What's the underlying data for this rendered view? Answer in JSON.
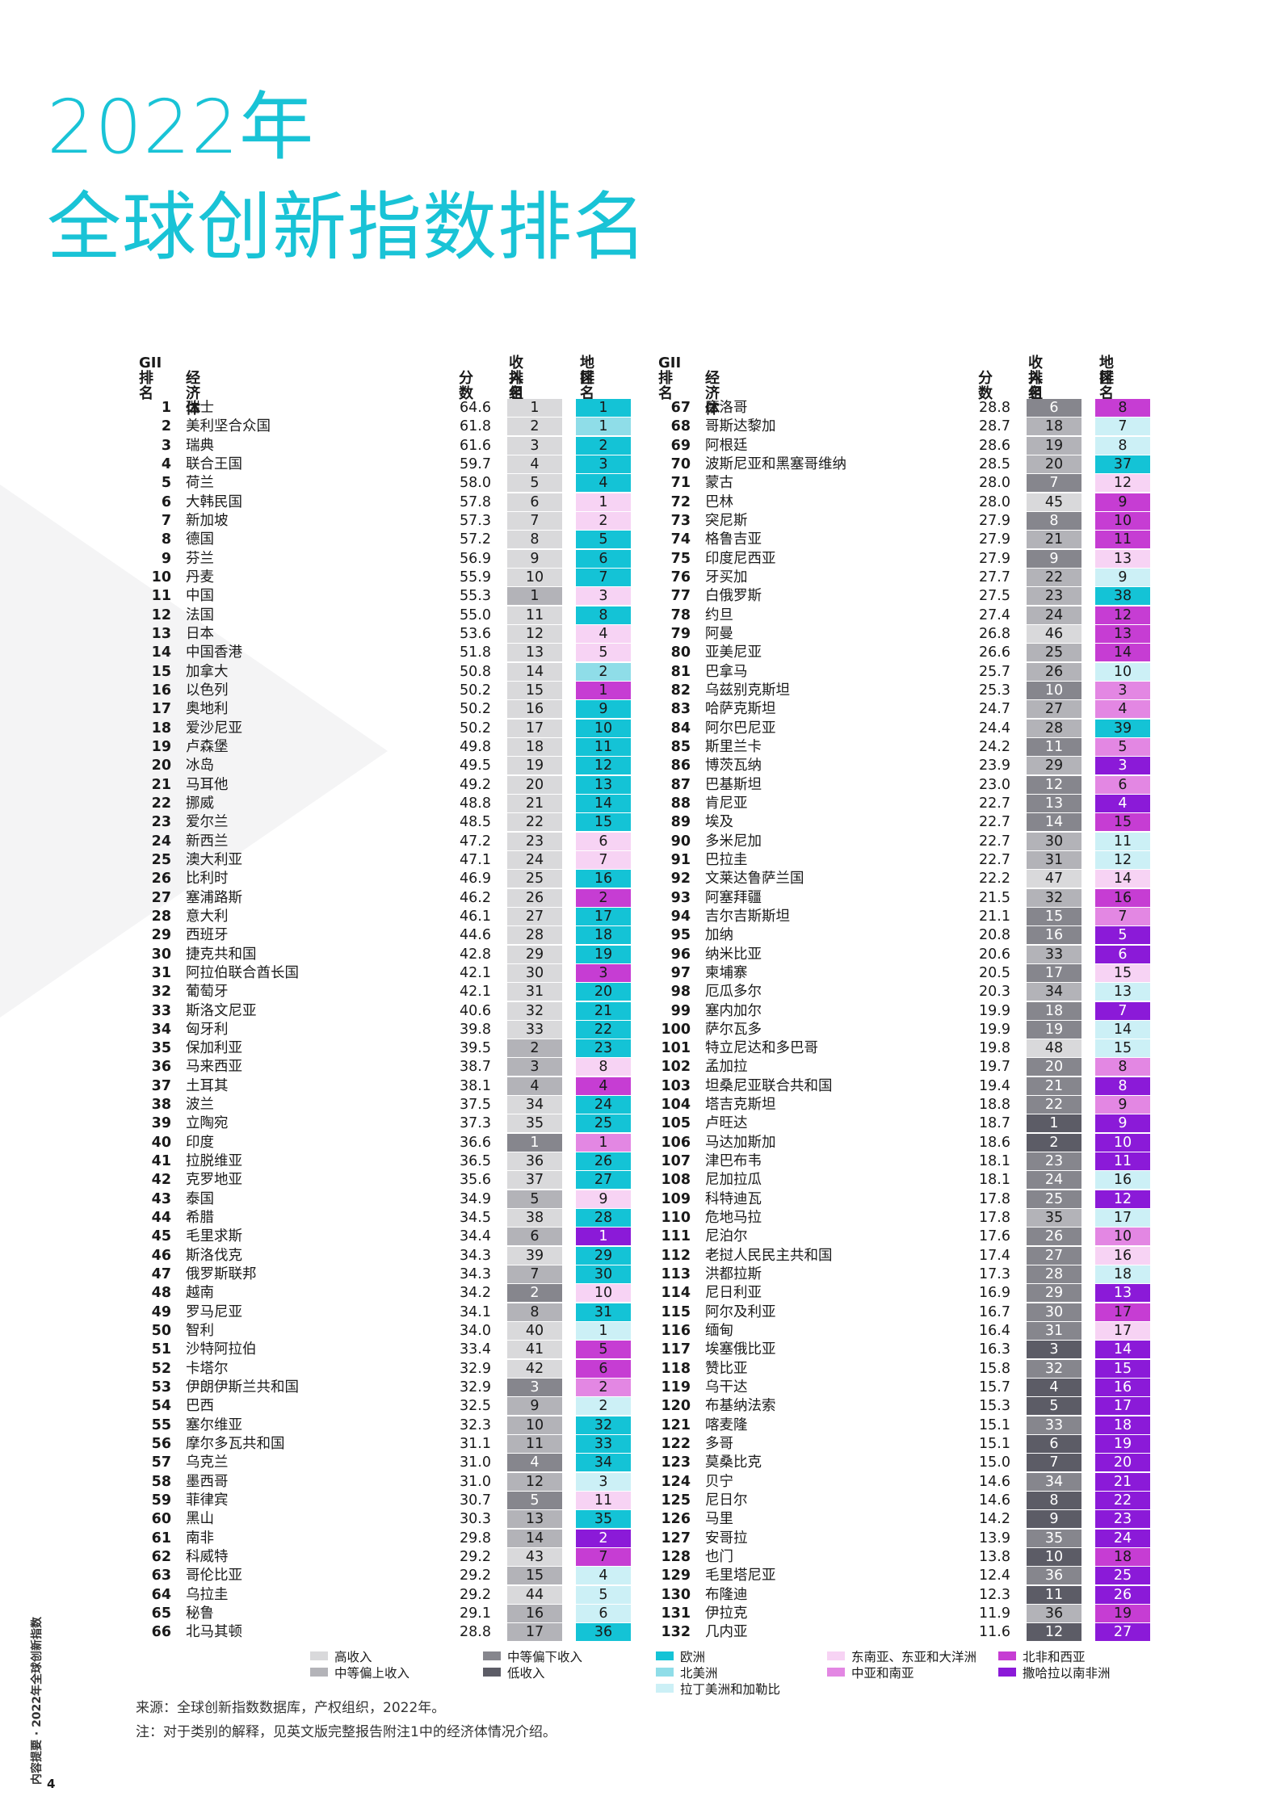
{
  "title_line1": "2022年",
  "title_line2": "全球创新指数排名",
  "headers": {
    "gii": "GII",
    "gii2": "排名",
    "economy": "经济体",
    "score": "分数",
    "income": "收入组",
    "income2": "排名",
    "region": "地区",
    "region2": "排名"
  },
  "colors": {
    "high": "#d9d9db",
    "upper_mid": "#b3b3b8",
    "lower_mid": "#86868d",
    "low": "#5c5c66",
    "europe": "#14c3d6",
    "north_america": "#8fdde8",
    "latin": "#ccf0f6",
    "seao": "#f7d3f4",
    "csa": "#e387e3",
    "nawa": "#c63dd3",
    "ssa": "#8b1ad8"
  },
  "legend": [
    {
      "label": "高收入",
      "color": "#d9d9db"
    },
    {
      "label": "中等偏上收入",
      "color": "#b3b3b8"
    },
    {
      "label": "中等偏下收入",
      "color": "#86868d"
    },
    {
      "label": "低收入",
      "color": "#5c5c66"
    },
    {
      "label": "欧洲",
      "color": "#14c3d6"
    },
    {
      "label": "北美洲",
      "color": "#8fdde8"
    },
    {
      "label": "拉丁美洲和加勒比",
      "color": "#ccf0f6"
    },
    {
      "label": "东南亚、东亚和大洋洲",
      "color": "#f7d3f4"
    },
    {
      "label": "中亚和南亚",
      "color": "#e387e3"
    },
    {
      "label": "北非和西亚",
      "color": "#c63dd3"
    },
    {
      "label": "撒哈拉以南非洲",
      "color": "#8b1ad8"
    }
  ],
  "source": "来源：全球创新指数数据库，产权组织，2022年。",
  "note": "注：对于类别的解释，见英文版完整报告附注1中的经济体情况介绍。",
  "side_text": "内容提要 · 2022年全球创新指数",
  "page_number": "4",
  "left_rows": [
    [
      "1",
      "瑞士",
      "64.6",
      "1",
      "H",
      "1",
      "EU"
    ],
    [
      "2",
      "美利坚合众国",
      "61.8",
      "2",
      "H",
      "1",
      "NA"
    ],
    [
      "3",
      "瑞典",
      "61.6",
      "3",
      "H",
      "2",
      "EU"
    ],
    [
      "4",
      "联合王国",
      "59.7",
      "4",
      "H",
      "3",
      "EU"
    ],
    [
      "5",
      "荷兰",
      "58.0",
      "5",
      "H",
      "4",
      "EU"
    ],
    [
      "6",
      "大韩民国",
      "57.8",
      "6",
      "H",
      "1",
      "SEAO"
    ],
    [
      "7",
      "新加坡",
      "57.3",
      "7",
      "H",
      "2",
      "SEAO"
    ],
    [
      "8",
      "德国",
      "57.2",
      "8",
      "H",
      "5",
      "EU"
    ],
    [
      "9",
      "芬兰",
      "56.9",
      "9",
      "H",
      "6",
      "EU"
    ],
    [
      "10",
      "丹麦",
      "55.9",
      "10",
      "H",
      "7",
      "EU"
    ],
    [
      "11",
      "中国",
      "55.3",
      "1",
      "UM",
      "3",
      "SEAO"
    ],
    [
      "12",
      "法国",
      "55.0",
      "11",
      "H",
      "8",
      "EU"
    ],
    [
      "13",
      "日本",
      "53.6",
      "12",
      "H",
      "4",
      "SEAO"
    ],
    [
      "14",
      "中国香港",
      "51.8",
      "13",
      "H",
      "5",
      "SEAO"
    ],
    [
      "15",
      "加拿大",
      "50.8",
      "14",
      "H",
      "2",
      "NA"
    ],
    [
      "16",
      "以色列",
      "50.2",
      "15",
      "H",
      "1",
      "NAWA"
    ],
    [
      "17",
      "奥地利",
      "50.2",
      "16",
      "H",
      "9",
      "EU"
    ],
    [
      "18",
      "爱沙尼亚",
      "50.2",
      "17",
      "H",
      "10",
      "EU"
    ],
    [
      "19",
      "卢森堡",
      "49.8",
      "18",
      "H",
      "11",
      "EU"
    ],
    [
      "20",
      "冰岛",
      "49.5",
      "19",
      "H",
      "12",
      "EU"
    ],
    [
      "21",
      "马耳他",
      "49.2",
      "20",
      "H",
      "13",
      "EU"
    ],
    [
      "22",
      "挪威",
      "48.8",
      "21",
      "H",
      "14",
      "EU"
    ],
    [
      "23",
      "爱尔兰",
      "48.5",
      "22",
      "H",
      "15",
      "EU"
    ],
    [
      "24",
      "新西兰",
      "47.2",
      "23",
      "H",
      "6",
      "SEAO"
    ],
    [
      "25",
      "澳大利亚",
      "47.1",
      "24",
      "H",
      "7",
      "SEAO"
    ],
    [
      "26",
      "比利时",
      "46.9",
      "25",
      "H",
      "16",
      "EU"
    ],
    [
      "27",
      "塞浦路斯",
      "46.2",
      "26",
      "H",
      "2",
      "NAWA"
    ],
    [
      "28",
      "意大利",
      "46.1",
      "27",
      "H",
      "17",
      "EU"
    ],
    [
      "29",
      "西班牙",
      "44.6",
      "28",
      "H",
      "18",
      "EU"
    ],
    [
      "30",
      "捷克共和国",
      "42.8",
      "29",
      "H",
      "19",
      "EU"
    ],
    [
      "31",
      "阿拉伯联合酋长国",
      "42.1",
      "30",
      "H",
      "3",
      "NAWA"
    ],
    [
      "32",
      "葡萄牙",
      "42.1",
      "31",
      "H",
      "20",
      "EU"
    ],
    [
      "33",
      "斯洛文尼亚",
      "40.6",
      "32",
      "H",
      "21",
      "EU"
    ],
    [
      "34",
      "匈牙利",
      "39.8",
      "33",
      "H",
      "22",
      "EU"
    ],
    [
      "35",
      "保加利亚",
      "39.5",
      "2",
      "UM",
      "23",
      "EU"
    ],
    [
      "36",
      "马来西亚",
      "38.7",
      "3",
      "UM",
      "8",
      "SEAO"
    ],
    [
      "37",
      "土耳其",
      "38.1",
      "4",
      "UM",
      "4",
      "NAWA"
    ],
    [
      "38",
      "波兰",
      "37.5",
      "34",
      "H",
      "24",
      "EU"
    ],
    [
      "39",
      "立陶宛",
      "37.3",
      "35",
      "H",
      "25",
      "EU"
    ],
    [
      "40",
      "印度",
      "36.6",
      "1",
      "LM",
      "1",
      "CSA"
    ],
    [
      "41",
      "拉脱维亚",
      "36.5",
      "36",
      "H",
      "26",
      "EU"
    ],
    [
      "42",
      "克罗地亚",
      "35.6",
      "37",
      "H",
      "27",
      "EU"
    ],
    [
      "43",
      "泰国",
      "34.9",
      "5",
      "UM",
      "9",
      "SEAO"
    ],
    [
      "44",
      "希腊",
      "34.5",
      "38",
      "H",
      "28",
      "EU"
    ],
    [
      "45",
      "毛里求斯",
      "34.4",
      "6",
      "UM",
      "1",
      "SSA"
    ],
    [
      "46",
      "斯洛伐克",
      "34.3",
      "39",
      "H",
      "29",
      "EU"
    ],
    [
      "47",
      "俄罗斯联邦",
      "34.3",
      "7",
      "UM",
      "30",
      "EU"
    ],
    [
      "48",
      "越南",
      "34.2",
      "2",
      "LM",
      "10",
      "SEAO"
    ],
    [
      "49",
      "罗马尼亚",
      "34.1",
      "8",
      "UM",
      "31",
      "EU"
    ],
    [
      "50",
      "智利",
      "34.0",
      "40",
      "H",
      "1",
      "LA"
    ],
    [
      "51",
      "沙特阿拉伯",
      "33.4",
      "41",
      "H",
      "5",
      "NAWA"
    ],
    [
      "52",
      "卡塔尔",
      "32.9",
      "42",
      "H",
      "6",
      "NAWA"
    ],
    [
      "53",
      "伊朗伊斯兰共和国",
      "32.9",
      "3",
      "LM",
      "2",
      "CSA"
    ],
    [
      "54",
      "巴西",
      "32.5",
      "9",
      "UM",
      "2",
      "LA"
    ],
    [
      "55",
      "塞尔维亚",
      "32.3",
      "10",
      "UM",
      "32",
      "EU"
    ],
    [
      "56",
      "摩尔多瓦共和国",
      "31.1",
      "11",
      "UM",
      "33",
      "EU"
    ],
    [
      "57",
      "乌克兰",
      "31.0",
      "4",
      "LM",
      "34",
      "EU"
    ],
    [
      "58",
      "墨西哥",
      "31.0",
      "12",
      "UM",
      "3",
      "LA"
    ],
    [
      "59",
      "菲律宾",
      "30.7",
      "5",
      "LM",
      "11",
      "SEAO"
    ],
    [
      "60",
      "黑山",
      "30.3",
      "13",
      "UM",
      "35",
      "EU"
    ],
    [
      "61",
      "南非",
      "29.8",
      "14",
      "UM",
      "2",
      "SSA"
    ],
    [
      "62",
      "科威特",
      "29.2",
      "43",
      "H",
      "7",
      "NAWA"
    ],
    [
      "63",
      "哥伦比亚",
      "29.2",
      "15",
      "UM",
      "4",
      "LA"
    ],
    [
      "64",
      "乌拉圭",
      "29.2",
      "44",
      "H",
      "5",
      "LA"
    ],
    [
      "65",
      "秘鲁",
      "29.1",
      "16",
      "UM",
      "6",
      "LA"
    ],
    [
      "66",
      "北马其顿",
      "28.8",
      "17",
      "UM",
      "36",
      "EU"
    ]
  ],
  "right_rows": [
    [
      "67",
      "摩洛哥",
      "28.8",
      "6",
      "LM",
      "8",
      "NAWA"
    ],
    [
      "68",
      "哥斯达黎加",
      "28.7",
      "18",
      "UM",
      "7",
      "LA"
    ],
    [
      "69",
      "阿根廷",
      "28.6",
      "19",
      "UM",
      "8",
      "LA"
    ],
    [
      "70",
      "波斯尼亚和黑塞哥维纳",
      "28.5",
      "20",
      "UM",
      "37",
      "EU"
    ],
    [
      "71",
      "蒙古",
      "28.0",
      "7",
      "LM",
      "12",
      "SEAO"
    ],
    [
      "72",
      "巴林",
      "28.0",
      "45",
      "H",
      "9",
      "NAWA"
    ],
    [
      "73",
      "突尼斯",
      "27.9",
      "8",
      "LM",
      "10",
      "NAWA"
    ],
    [
      "74",
      "格鲁吉亚",
      "27.9",
      "21",
      "UM",
      "11",
      "NAWA"
    ],
    [
      "75",
      "印度尼西亚",
      "27.9",
      "9",
      "LM",
      "13",
      "SEAO"
    ],
    [
      "76",
      "牙买加",
      "27.7",
      "22",
      "UM",
      "9",
      "LA"
    ],
    [
      "77",
      "白俄罗斯",
      "27.5",
      "23",
      "UM",
      "38",
      "EU"
    ],
    [
      "78",
      "约旦",
      "27.4",
      "24",
      "UM",
      "12",
      "NAWA"
    ],
    [
      "79",
      "阿曼",
      "26.8",
      "46",
      "H",
      "13",
      "NAWA"
    ],
    [
      "80",
      "亚美尼亚",
      "26.6",
      "25",
      "UM",
      "14",
      "NAWA"
    ],
    [
      "81",
      "巴拿马",
      "25.7",
      "26",
      "UM",
      "10",
      "LA"
    ],
    [
      "82",
      "乌兹别克斯坦",
      "25.3",
      "10",
      "LM",
      "3",
      "CSA"
    ],
    [
      "83",
      "哈萨克斯坦",
      "24.7",
      "27",
      "UM",
      "4",
      "CSA"
    ],
    [
      "84",
      "阿尔巴尼亚",
      "24.4",
      "28",
      "UM",
      "39",
      "EU"
    ],
    [
      "85",
      "斯里兰卡",
      "24.2",
      "11",
      "LM",
      "5",
      "CSA"
    ],
    [
      "86",
      "博茨瓦纳",
      "23.9",
      "29",
      "UM",
      "3",
      "SSA"
    ],
    [
      "87",
      "巴基斯坦",
      "23.0",
      "12",
      "LM",
      "6",
      "CSA"
    ],
    [
      "88",
      "肯尼亚",
      "22.7",
      "13",
      "LM",
      "4",
      "SSA"
    ],
    [
      "89",
      "埃及",
      "22.7",
      "14",
      "LM",
      "15",
      "NAWA"
    ],
    [
      "90",
      "多米尼加",
      "22.7",
      "30",
      "UM",
      "11",
      "LA"
    ],
    [
      "91",
      "巴拉圭",
      "22.7",
      "31",
      "UM",
      "12",
      "LA"
    ],
    [
      "92",
      "文莱达鲁萨兰国",
      "22.2",
      "47",
      "H",
      "14",
      "SEAO"
    ],
    [
      "93",
      "阿塞拜疆",
      "21.5",
      "32",
      "UM",
      "16",
      "NAWA"
    ],
    [
      "94",
      "吉尔吉斯斯坦",
      "21.1",
      "15",
      "LM",
      "7",
      "CSA"
    ],
    [
      "95",
      "加纳",
      "20.8",
      "16",
      "LM",
      "5",
      "SSA"
    ],
    [
      "96",
      "纳米比亚",
      "20.6",
      "33",
      "UM",
      "6",
      "SSA"
    ],
    [
      "97",
      "柬埔寨",
      "20.5",
      "17",
      "LM",
      "15",
      "SEAO"
    ],
    [
      "98",
      "厄瓜多尔",
      "20.3",
      "34",
      "UM",
      "13",
      "LA"
    ],
    [
      "99",
      "塞内加尔",
      "19.9",
      "18",
      "LM",
      "7",
      "SSA"
    ],
    [
      "100",
      "萨尔瓦多",
      "19.9",
      "19",
      "LM",
      "14",
      "LA"
    ],
    [
      "101",
      "特立尼达和多巴哥",
      "19.8",
      "48",
      "H",
      "15",
      "LA"
    ],
    [
      "102",
      "孟加拉",
      "19.7",
      "20",
      "LM",
      "8",
      "CSA"
    ],
    [
      "103",
      "坦桑尼亚联合共和国",
      "19.4",
      "21",
      "LM",
      "8",
      "SSA"
    ],
    [
      "104",
      "塔吉克斯坦",
      "18.8",
      "22",
      "LM",
      "9",
      "CSA"
    ],
    [
      "105",
      "卢旺达",
      "18.7",
      "1",
      "L",
      "9",
      "SSA"
    ],
    [
      "106",
      "马达加斯加",
      "18.6",
      "2",
      "L",
      "10",
      "SSA"
    ],
    [
      "107",
      "津巴布韦",
      "18.1",
      "23",
      "LM",
      "11",
      "SSA"
    ],
    [
      "108",
      "尼加拉瓜",
      "18.1",
      "24",
      "LM",
      "16",
      "LA"
    ],
    [
      "109",
      "科特迪瓦",
      "17.8",
      "25",
      "LM",
      "12",
      "SSA"
    ],
    [
      "110",
      "危地马拉",
      "17.8",
      "35",
      "UM",
      "17",
      "LA"
    ],
    [
      "111",
      "尼泊尔",
      "17.6",
      "26",
      "LM",
      "10",
      "CSA"
    ],
    [
      "112",
      "老挝人民民主共和国",
      "17.4",
      "27",
      "LM",
      "16",
      "SEAO"
    ],
    [
      "113",
      "洪都拉斯",
      "17.3",
      "28",
      "LM",
      "18",
      "LA"
    ],
    [
      "114",
      "尼日利亚",
      "16.9",
      "29",
      "LM",
      "13",
      "SSA"
    ],
    [
      "115",
      "阿尔及利亚",
      "16.7",
      "30",
      "LM",
      "17",
      "NAWA"
    ],
    [
      "116",
      "缅甸",
      "16.4",
      "31",
      "LM",
      "17",
      "SEAO"
    ],
    [
      "117",
      "埃塞俄比亚",
      "16.3",
      "3",
      "L",
      "14",
      "SSA"
    ],
    [
      "118",
      "赞比亚",
      "15.8",
      "32",
      "LM",
      "15",
      "SSA"
    ],
    [
      "119",
      "乌干达",
      "15.7",
      "4",
      "L",
      "16",
      "SSA"
    ],
    [
      "120",
      "布基纳法索",
      "15.3",
      "5",
      "L",
      "17",
      "SSA"
    ],
    [
      "121",
      "喀麦隆",
      "15.1",
      "33",
      "LM",
      "18",
      "SSA"
    ],
    [
      "122",
      "多哥",
      "15.1",
      "6",
      "L",
      "19",
      "SSA"
    ],
    [
      "123",
      "莫桑比克",
      "15.0",
      "7",
      "L",
      "20",
      "SSA"
    ],
    [
      "124",
      "贝宁",
      "14.6",
      "34",
      "LM",
      "21",
      "SSA"
    ],
    [
      "125",
      "尼日尔",
      "14.6",
      "8",
      "L",
      "22",
      "SSA"
    ],
    [
      "126",
      "马里",
      "14.2",
      "9",
      "L",
      "23",
      "SSA"
    ],
    [
      "127",
      "安哥拉",
      "13.9",
      "35",
      "LM",
      "24",
      "SSA"
    ],
    [
      "128",
      "也门",
      "13.8",
      "10",
      "L",
      "18",
      "NAWA"
    ],
    [
      "129",
      "毛里塔尼亚",
      "12.4",
      "36",
      "LM",
      "25",
      "SSA"
    ],
    [
      "130",
      "布隆迪",
      "12.3",
      "11",
      "L",
      "26",
      "SSA"
    ],
    [
      "131",
      "伊拉克",
      "11.9",
      "36",
      "UM",
      "19",
      "NAWA"
    ],
    [
      "132",
      "几内亚",
      "11.6",
      "12",
      "L",
      "27",
      "SSA"
    ]
  ]
}
